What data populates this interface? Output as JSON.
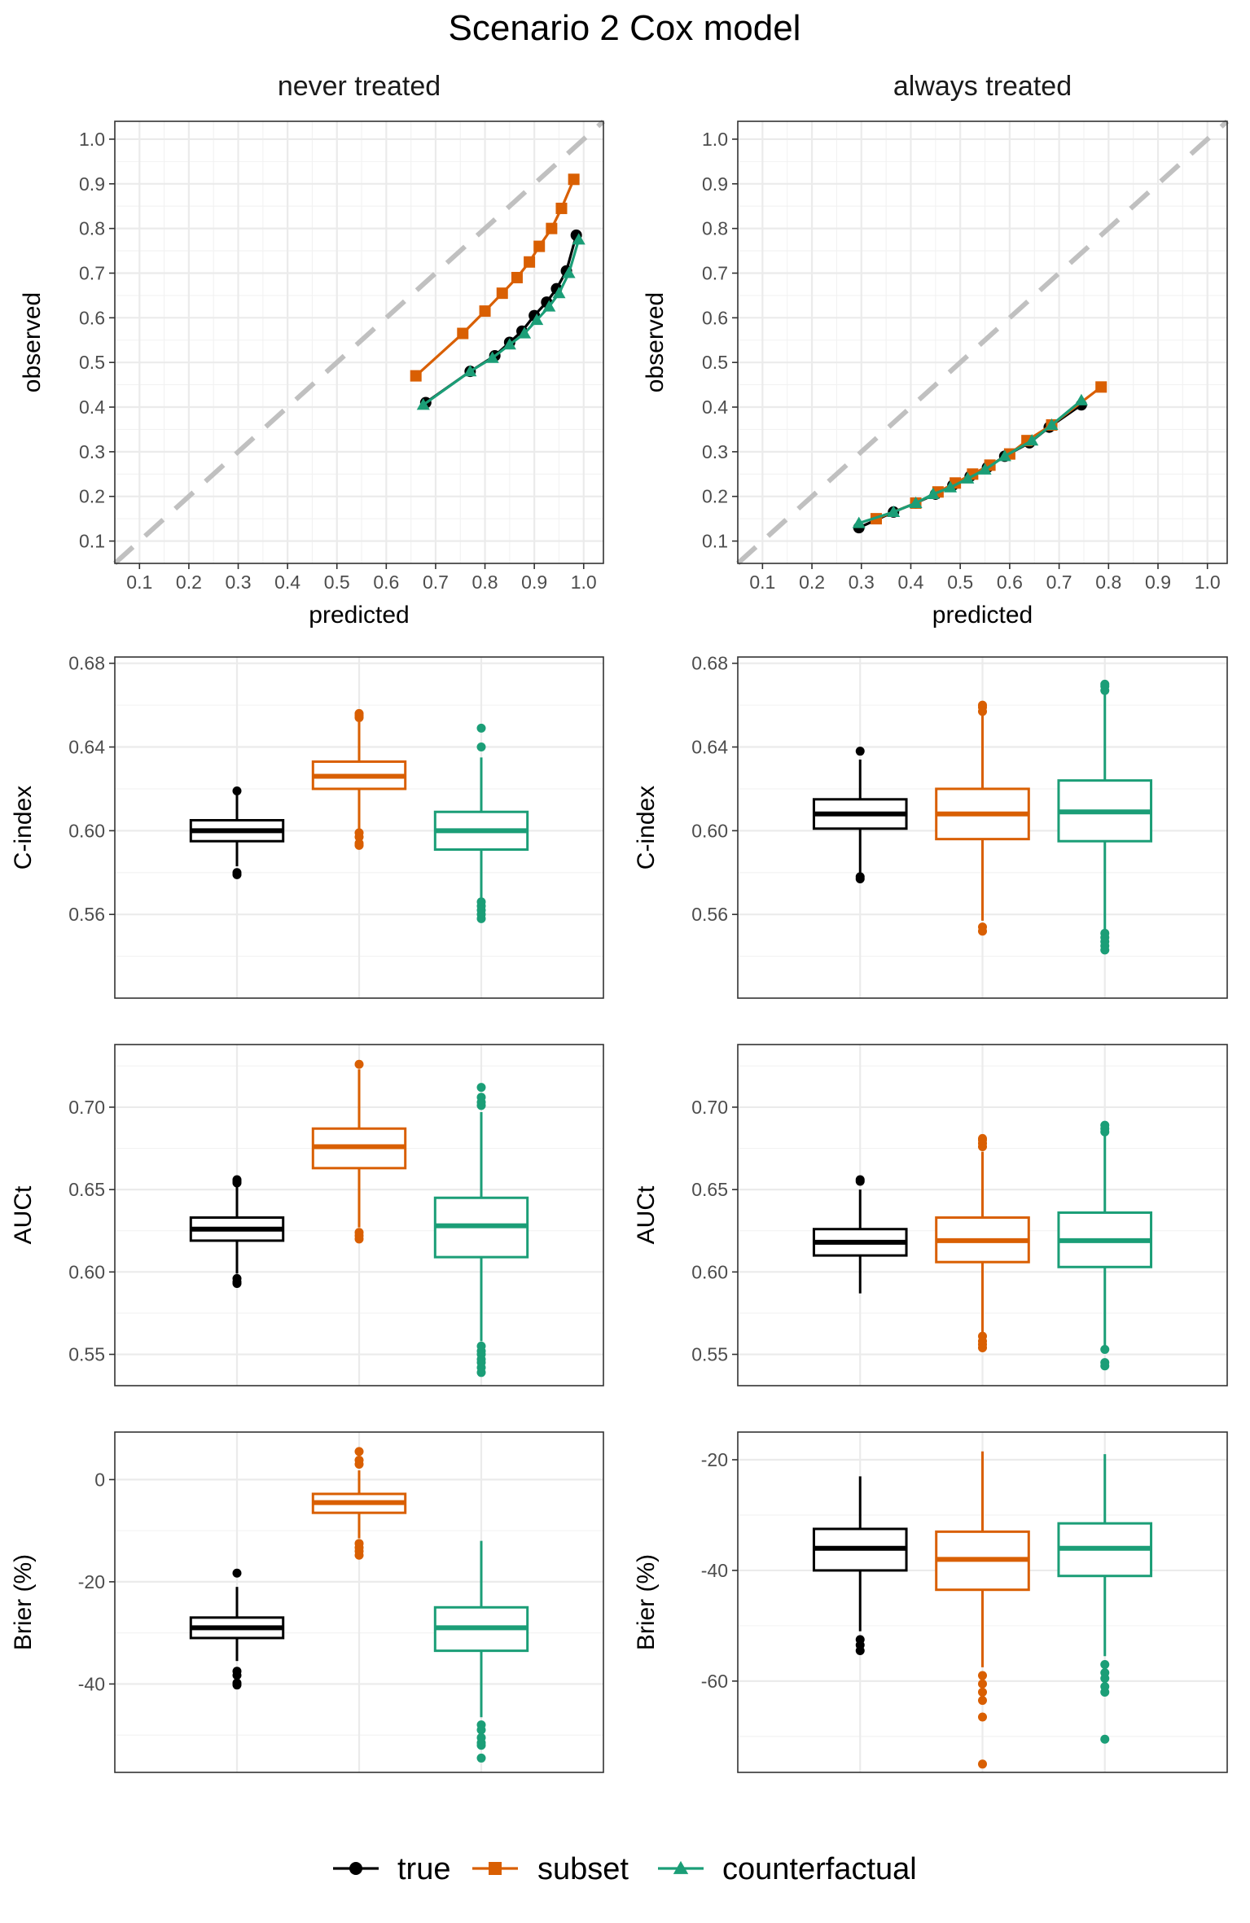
{
  "title": "Scenario 2 Cox model",
  "colors": {
    "true": "#000000",
    "subset": "#D95F02",
    "counterfactual": "#1B9E77",
    "diagonal": "#c0c0c0"
  },
  "legend": [
    {
      "key": "true",
      "label": "true",
      "marker": "circle"
    },
    {
      "key": "subset",
      "label": "subset",
      "marker": "square"
    },
    {
      "key": "counterfactual",
      "label": "counterfactual",
      "marker": "triangle"
    }
  ],
  "chart_data": [
    {
      "type": "line",
      "panel": "never treated",
      "xlabel": "predicted",
      "ylabel": "observed",
      "xlim": [
        0.05,
        1.04
      ],
      "ylim": [
        0.05,
        1.04
      ],
      "xticks": [
        "0.1",
        "0.2",
        "0.3",
        "0.4",
        "0.5",
        "0.6",
        "0.7",
        "0.8",
        "0.9",
        "1.0"
      ],
      "yticks": [
        "0.1",
        "0.2",
        "0.3",
        "0.4",
        "0.5",
        "0.6",
        "0.7",
        "0.8",
        "0.9",
        "1.0"
      ],
      "series": [
        {
          "name": "true",
          "x": [
            0.68,
            0.77,
            0.82,
            0.85,
            0.875,
            0.9,
            0.925,
            0.945,
            0.965,
            0.985
          ],
          "y": [
            0.41,
            0.48,
            0.515,
            0.545,
            0.57,
            0.605,
            0.635,
            0.665,
            0.705,
            0.785
          ]
        },
        {
          "name": "subset",
          "x": [
            0.66,
            0.755,
            0.8,
            0.835,
            0.865,
            0.89,
            0.91,
            0.935,
            0.955,
            0.98
          ],
          "y": [
            0.47,
            0.565,
            0.615,
            0.655,
            0.69,
            0.725,
            0.76,
            0.8,
            0.845,
            0.91
          ]
        },
        {
          "name": "counterfactual",
          "x": [
            0.675,
            0.77,
            0.815,
            0.85,
            0.88,
            0.905,
            0.93,
            0.95,
            0.97,
            0.99
          ],
          "y": [
            0.405,
            0.48,
            0.51,
            0.54,
            0.565,
            0.595,
            0.625,
            0.655,
            0.7,
            0.775
          ]
        }
      ]
    },
    {
      "type": "line",
      "panel": "always treated",
      "xlabel": "predicted",
      "ylabel": "observed",
      "xlim": [
        0.05,
        1.04
      ],
      "ylim": [
        0.05,
        1.04
      ],
      "xticks": [
        "0.1",
        "0.2",
        "0.3",
        "0.4",
        "0.5",
        "0.6",
        "0.7",
        "0.8",
        "0.9",
        "1.0"
      ],
      "yticks": [
        "0.1",
        "0.2",
        "0.3",
        "0.4",
        "0.5",
        "0.6",
        "0.7",
        "0.8",
        "0.9",
        "1.0"
      ],
      "series": [
        {
          "name": "true",
          "x": [
            0.295,
            0.365,
            0.41,
            0.45,
            0.485,
            0.52,
            0.555,
            0.59,
            0.64,
            0.68,
            0.745
          ],
          "y": [
            0.13,
            0.165,
            0.185,
            0.205,
            0.225,
            0.245,
            0.265,
            0.29,
            0.32,
            0.355,
            0.405
          ]
        },
        {
          "name": "subset",
          "x": [
            0.33,
            0.41,
            0.455,
            0.49,
            0.525,
            0.56,
            0.6,
            0.635,
            0.685,
            0.785
          ],
          "y": [
            0.15,
            0.185,
            0.21,
            0.23,
            0.25,
            0.27,
            0.295,
            0.325,
            0.36,
            0.445
          ]
        },
        {
          "name": "counterfactual",
          "x": [
            0.295,
            0.365,
            0.41,
            0.445,
            0.48,
            0.515,
            0.55,
            0.59,
            0.645,
            0.685,
            0.745
          ],
          "y": [
            0.14,
            0.165,
            0.185,
            0.205,
            0.22,
            0.24,
            0.26,
            0.29,
            0.325,
            0.36,
            0.415
          ]
        }
      ]
    },
    {
      "type": "box",
      "panel": "never treated",
      "ylabel": "C-index",
      "ylim": [
        0.52,
        0.683
      ],
      "yticks": [
        "0.56",
        "0.60",
        "0.64",
        "0.68"
      ],
      "boxes": [
        {
          "name": "true",
          "q1": 0.595,
          "median": 0.6,
          "q3": 0.605,
          "whisker_low": 0.583,
          "whisker_high": 0.617,
          "outliers": [
            0.58,
            0.579,
            0.619
          ]
        },
        {
          "name": "subset",
          "q1": 0.62,
          "median": 0.626,
          "q3": 0.633,
          "whisker_low": 0.601,
          "whisker_high": 0.652,
          "outliers": [
            0.599,
            0.597,
            0.594,
            0.593,
            0.654,
            0.656,
            0.655
          ]
        },
        {
          "name": "counterfactual",
          "q1": 0.591,
          "median": 0.6,
          "q3": 0.609,
          "whisker_low": 0.567,
          "whisker_high": 0.635,
          "outliers": [
            0.566,
            0.564,
            0.562,
            0.56,
            0.558,
            0.64,
            0.649
          ]
        }
      ]
    },
    {
      "type": "box",
      "panel": "always treated",
      "ylabel": "C-index",
      "ylim": [
        0.52,
        0.683
      ],
      "yticks": [
        "0.56",
        "0.60",
        "0.64",
        "0.68"
      ],
      "boxes": [
        {
          "name": "true",
          "q1": 0.601,
          "median": 0.608,
          "q3": 0.615,
          "whisker_low": 0.58,
          "whisker_high": 0.634,
          "outliers": [
            0.578,
            0.577,
            0.638
          ]
        },
        {
          "name": "subset",
          "q1": 0.596,
          "median": 0.608,
          "q3": 0.62,
          "whisker_low": 0.557,
          "whisker_high": 0.655,
          "outliers": [
            0.554,
            0.552,
            0.657,
            0.659,
            0.66
          ]
        },
        {
          "name": "counterfactual",
          "q1": 0.595,
          "median": 0.609,
          "q3": 0.624,
          "whisker_low": 0.553,
          "whisker_high": 0.666,
          "outliers": [
            0.551,
            0.549,
            0.547,
            0.545,
            0.543,
            0.667,
            0.669,
            0.67
          ]
        }
      ]
    },
    {
      "type": "box",
      "panel": "never treated",
      "ylabel": "AUCt",
      "ylim": [
        0.531,
        0.738
      ],
      "yticks": [
        "0.55",
        "0.60",
        "0.65",
        "0.70"
      ],
      "boxes": [
        {
          "name": "true",
          "q1": 0.619,
          "median": 0.626,
          "q3": 0.633,
          "whisker_low": 0.599,
          "whisker_high": 0.652,
          "outliers": [
            0.596,
            0.594,
            0.593,
            0.654,
            0.655,
            0.656
          ]
        },
        {
          "name": "subset",
          "q1": 0.663,
          "median": 0.676,
          "q3": 0.687,
          "whisker_low": 0.627,
          "whisker_high": 0.723,
          "outliers": [
            0.624,
            0.622,
            0.62,
            0.726
          ]
        },
        {
          "name": "counterfactual",
          "q1": 0.609,
          "median": 0.628,
          "q3": 0.645,
          "whisker_low": 0.558,
          "whisker_high": 0.697,
          "outliers": [
            0.555,
            0.552,
            0.55,
            0.547,
            0.545,
            0.542,
            0.539,
            0.701,
            0.703,
            0.706,
            0.712
          ]
        }
      ]
    },
    {
      "type": "box",
      "panel": "always treated",
      "ylabel": "AUCt",
      "ylim": [
        0.531,
        0.738
      ],
      "yticks": [
        "0.55",
        "0.60",
        "0.65",
        "0.70"
      ],
      "boxes": [
        {
          "name": "true",
          "q1": 0.61,
          "median": 0.618,
          "q3": 0.626,
          "whisker_low": 0.587,
          "whisker_high": 0.65,
          "outliers": [
            0.655,
            0.656
          ]
        },
        {
          "name": "subset",
          "q1": 0.606,
          "median": 0.619,
          "q3": 0.633,
          "whisker_low": 0.563,
          "whisker_high": 0.673,
          "outliers": [
            0.561,
            0.558,
            0.556,
            0.554,
            0.676,
            0.678,
            0.68,
            0.681
          ]
        },
        {
          "name": "counterfactual",
          "q1": 0.603,
          "median": 0.619,
          "q3": 0.636,
          "whisker_low": 0.555,
          "whisker_high": 0.683,
          "outliers": [
            0.553,
            0.545,
            0.543,
            0.685,
            0.687,
            0.689
          ]
        }
      ]
    },
    {
      "type": "box",
      "panel": "never treated",
      "ylabel": "Brier (%)",
      "ylim": [
        -57.3,
        9.3
      ],
      "yticks": [
        "-40",
        "-20",
        "0"
      ],
      "boxes": [
        {
          "name": "true",
          "q1": -31.0,
          "median": -29.0,
          "q3": -27.0,
          "whisker_low": -35.5,
          "whisker_high": -21.0,
          "outliers": [
            -37.5,
            -38.3,
            -39.8,
            -40.2,
            -18.3
          ]
        },
        {
          "name": "subset",
          "q1": -6.5,
          "median": -4.5,
          "q3": -2.8,
          "whisker_low": -11.5,
          "whisker_high": 1.8,
          "outliers": [
            -12.5,
            -13.3,
            -14.0,
            -14.8,
            3.0,
            3.8,
            5.5
          ]
        },
        {
          "name": "counterfactual",
          "q1": -33.5,
          "median": -29.0,
          "q3": -25.0,
          "whisker_low": -46.5,
          "whisker_high": -12.0,
          "outliers": [
            -48.0,
            -49.0,
            -50.5,
            -51.5,
            -52.0,
            -54.5
          ]
        }
      ]
    },
    {
      "type": "box",
      "panel": "always treated",
      "ylabel": "Brier (%)",
      "ylim": [
        -76.5,
        -15.0
      ],
      "yticks": [
        "-60",
        "-40",
        "-20"
      ],
      "boxes": [
        {
          "name": "true",
          "q1": -40.0,
          "median": -36.0,
          "q3": -32.5,
          "whisker_low": -51.0,
          "whisker_high": -23.0,
          "outliers": [
            -52.5,
            -53.5,
            -54.5
          ]
        },
        {
          "name": "subset",
          "q1": -43.5,
          "median": -38.0,
          "q3": -33.0,
          "whisker_low": -57.5,
          "whisker_high": -18.5,
          "outliers": [
            -59.0,
            -60.5,
            -62.0,
            -63.5,
            -66.5,
            -75.0
          ]
        },
        {
          "name": "counterfactual",
          "q1": -41.0,
          "median": -36.0,
          "q3": -31.5,
          "whisker_low": -55.5,
          "whisker_high": -19.0,
          "outliers": [
            -57.0,
            -58.5,
            -59.5,
            -61.0,
            -62.0,
            -70.5
          ]
        }
      ]
    }
  ]
}
